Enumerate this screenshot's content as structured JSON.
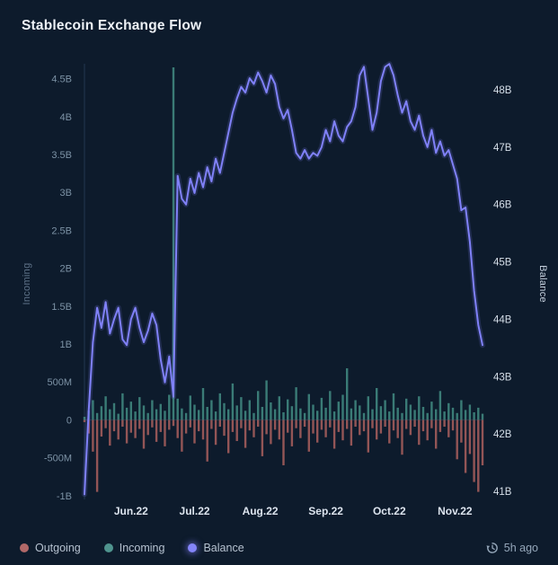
{
  "page": {
    "title": "Stablecoin Exchange Flow",
    "background": "#0d1b2c"
  },
  "legend": {
    "items": [
      {
        "label": "Outgoing",
        "color": "#b16868"
      },
      {
        "label": "Incoming",
        "color": "#4f948e"
      },
      {
        "label": "Balance",
        "color": "#8485fa"
      }
    ]
  },
  "footer": {
    "updated": "5h ago",
    "icon": "history-icon"
  },
  "chart_data": {
    "type": "mixed",
    "title": "Stablecoin Exchange Flow",
    "grid": false,
    "legend_position": "bottom-left",
    "left_axis": {
      "label": "Incoming",
      "ticks": [
        "4.5B",
        "4B",
        "3.5B",
        "3B",
        "2.5B",
        "2B",
        "1.5B",
        "1B",
        "500M",
        "0",
        "-500M",
        "-1B"
      ],
      "tick_values": [
        4.5,
        4,
        3.5,
        3,
        2.5,
        2,
        1.5,
        1,
        0.5,
        0,
        -0.5,
        -1
      ],
      "unit": "B",
      "range": [
        -1.05,
        4.65
      ]
    },
    "right_axis": {
      "label": "Balance",
      "ticks": [
        "48B",
        "47B",
        "46B",
        "45B",
        "44B",
        "43B",
        "42B",
        "41B"
      ],
      "tick_values": [
        48,
        47,
        46,
        45,
        44,
        43,
        42,
        41
      ],
      "unit": "B",
      "range": [
        40.86,
        48.39
      ]
    },
    "x_axis": {
      "labels": [
        "Jun.22",
        "Jul.22",
        "Aug.22",
        "Sep.22",
        "Oct.22",
        "Nov.22"
      ],
      "label_days": [
        22,
        52,
        83,
        114,
        144,
        175
      ],
      "day_range": [
        0,
        188
      ],
      "day_start": 0,
      "day_step": 2
    },
    "series": [
      {
        "name": "Outgoing",
        "type": "bar",
        "axis": "left",
        "unit": "M",
        "color": "#9e5a5a",
        "values": [
          -30,
          -180,
          -420,
          -950,
          -220,
          -110,
          -340,
          -150,
          -260,
          -90,
          -310,
          -170,
          -240,
          -120,
          -380,
          -200,
          -100,
          -290,
          -160,
          -350,
          -130,
          -80,
          -240,
          -420,
          -180,
          -100,
          -310,
          -150,
          -260,
          -550,
          -120,
          -330,
          -90,
          -210,
          -440,
          -160,
          -280,
          -110,
          -370,
          -140,
          -230,
          -90,
          -480,
          -190,
          -320,
          -130,
          -260,
          -600,
          -170,
          -350,
          -110,
          -240,
          -90,
          -420,
          -180,
          -300,
          -130,
          -230,
          -100,
          -380,
          -160,
          -270,
          -120,
          -340,
          -90,
          -200,
          -150,
          -430,
          -110,
          -260,
          -180,
          -90,
          -310,
          -140,
          -240,
          -460,
          -120,
          -200,
          -90,
          -330,
          -150,
          -270,
          -110,
          -380,
          -160,
          -90,
          -230,
          -140,
          -520,
          -300,
          -700,
          -450,
          -820,
          -950,
          -600
        ]
      },
      {
        "name": "Incoming",
        "type": "bar",
        "axis": "left",
        "unit": "M",
        "color": "#3e837d",
        "values": [
          40,
          120,
          260,
          90,
          180,
          310,
          140,
          220,
          80,
          350,
          160,
          240,
          110,
          300,
          190,
          90,
          260,
          140,
          210,
          120,
          330,
          4650,
          280,
          150,
          90,
          320,
          200,
          130,
          420,
          170,
          260,
          110,
          350,
          220,
          140,
          480,
          190,
          300,
          120,
          260,
          90,
          380,
          170,
          520,
          230,
          140,
          310,
          100,
          270,
          180,
          430,
          150,
          90,
          340,
          200,
          120,
          290,
          160,
          380,
          110,
          240,
          330,
          680,
          150,
          260,
          190,
          90,
          310,
          140,
          420,
          180,
          260,
          110,
          350,
          160,
          90,
          280,
          200,
          130,
          310,
          170,
          90,
          240,
          140,
          380,
          110,
          220,
          160,
          90,
          260,
          130,
          200,
          100,
          160,
          80
        ]
      },
      {
        "name": "Balance",
        "type": "line",
        "axis": "right",
        "unit": "B",
        "color": "#8081f8",
        "values": [
          40.95,
          42.4,
          43.6,
          44.2,
          43.85,
          44.3,
          43.75,
          44.0,
          44.2,
          43.65,
          43.55,
          44.0,
          44.2,
          43.85,
          43.6,
          43.8,
          44.1,
          43.9,
          43.3,
          42.9,
          43.35,
          42.65,
          46.5,
          46.1,
          46.0,
          46.45,
          46.2,
          46.55,
          46.3,
          46.65,
          46.4,
          46.8,
          46.55,
          46.9,
          47.25,
          47.6,
          47.85,
          48.05,
          47.95,
          48.2,
          48.1,
          48.3,
          48.15,
          47.95,
          48.25,
          48.1,
          47.7,
          47.5,
          47.65,
          47.3,
          46.9,
          46.8,
          46.95,
          46.8,
          46.9,
          46.85,
          47.0,
          47.3,
          47.1,
          47.45,
          47.2,
          47.1,
          47.35,
          47.45,
          47.7,
          48.25,
          48.4,
          47.85,
          47.3,
          47.6,
          48.15,
          48.4,
          48.45,
          48.25,
          47.9,
          47.6,
          47.8,
          47.45,
          47.3,
          47.55,
          47.2,
          47.0,
          47.3,
          46.9,
          47.1,
          46.85,
          46.95,
          46.7,
          46.45,
          45.9,
          45.95,
          45.35,
          44.5,
          43.9,
          43.55
        ]
      }
    ]
  }
}
